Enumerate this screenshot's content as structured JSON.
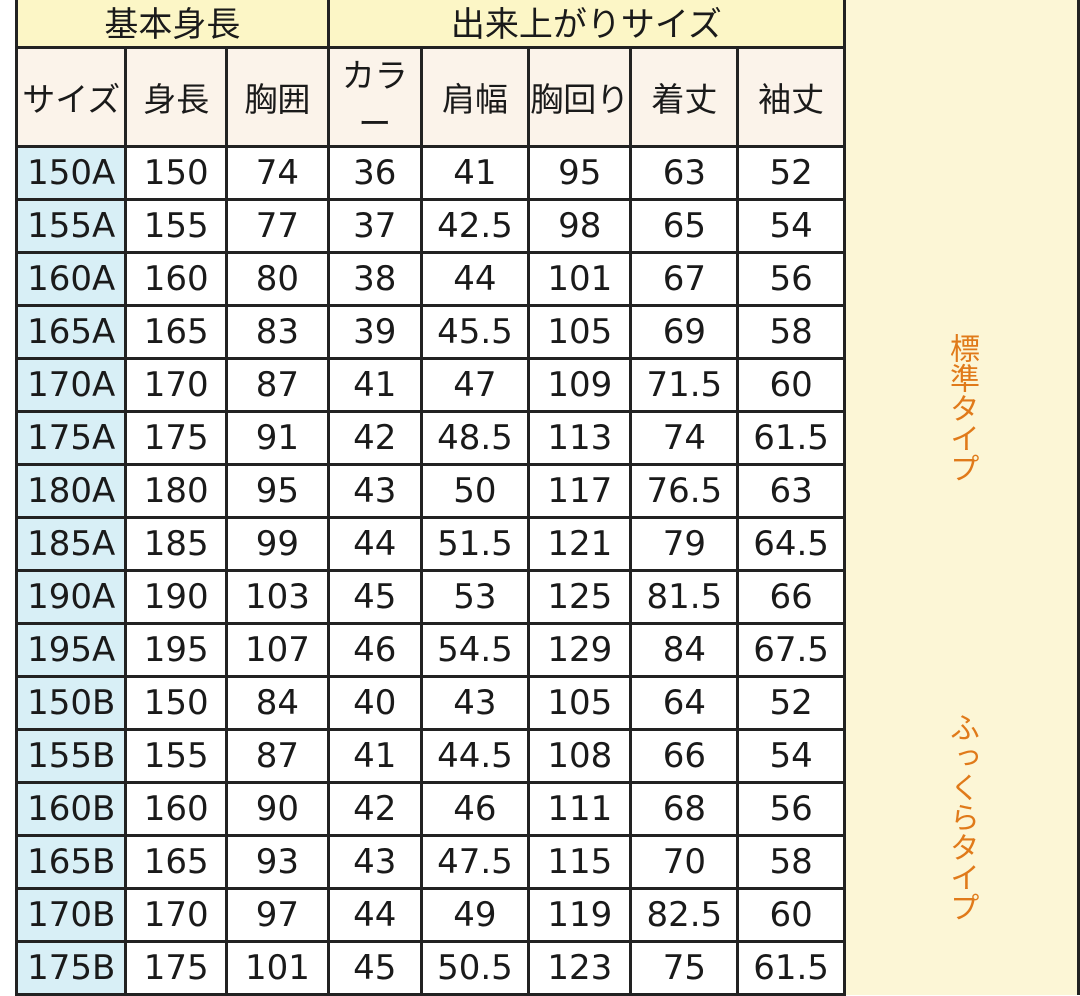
{
  "header": {
    "group_basic": "基本身長",
    "group_finished": "出来上がりサイズ",
    "columns": [
      "サイズ",
      "身長",
      "胸囲",
      "カラー",
      "肩幅",
      "胸回り",
      "着丈",
      "袖丈"
    ]
  },
  "side_labels": {
    "standard": "標準タイプ",
    "full": "ふっくらタイプ"
  },
  "colors": {
    "group_header_bg": "#fcf6c6",
    "size_col_bg": "#d8eff6",
    "side_label_text": "#e07a1a"
  },
  "rows": [
    [
      "150A",
      "150",
      "74",
      "36",
      "41",
      "95",
      "63",
      "52"
    ],
    [
      "155A",
      "155",
      "77",
      "37",
      "42.5",
      "98",
      "65",
      "54"
    ],
    [
      "160A",
      "160",
      "80",
      "38",
      "44",
      "101",
      "67",
      "56"
    ],
    [
      "165A",
      "165",
      "83",
      "39",
      "45.5",
      "105",
      "69",
      "58"
    ],
    [
      "170A",
      "170",
      "87",
      "41",
      "47",
      "109",
      "71.5",
      "60"
    ],
    [
      "175A",
      "175",
      "91",
      "42",
      "48.5",
      "113",
      "74",
      "61.5"
    ],
    [
      "180A",
      "180",
      "95",
      "43",
      "50",
      "117",
      "76.5",
      "63"
    ],
    [
      "185A",
      "185",
      "99",
      "44",
      "51.5",
      "121",
      "79",
      "64.5"
    ],
    [
      "190A",
      "190",
      "103",
      "45",
      "53",
      "125",
      "81.5",
      "66"
    ],
    [
      "195A",
      "195",
      "107",
      "46",
      "54.5",
      "129",
      "84",
      "67.5"
    ],
    [
      "150B",
      "150",
      "84",
      "40",
      "43",
      "105",
      "64",
      "52"
    ],
    [
      "155B",
      "155",
      "87",
      "41",
      "44.5",
      "108",
      "66",
      "54"
    ],
    [
      "160B",
      "160",
      "90",
      "42",
      "46",
      "111",
      "68",
      "56"
    ],
    [
      "165B",
      "165",
      "93",
      "43",
      "47.5",
      "115",
      "70",
      "58"
    ],
    [
      "170B",
      "170",
      "97",
      "44",
      "49",
      "119",
      "82.5",
      "60"
    ],
    [
      "175B",
      "175",
      "101",
      "45",
      "50.5",
      "123",
      "75",
      "61.5"
    ]
  ]
}
